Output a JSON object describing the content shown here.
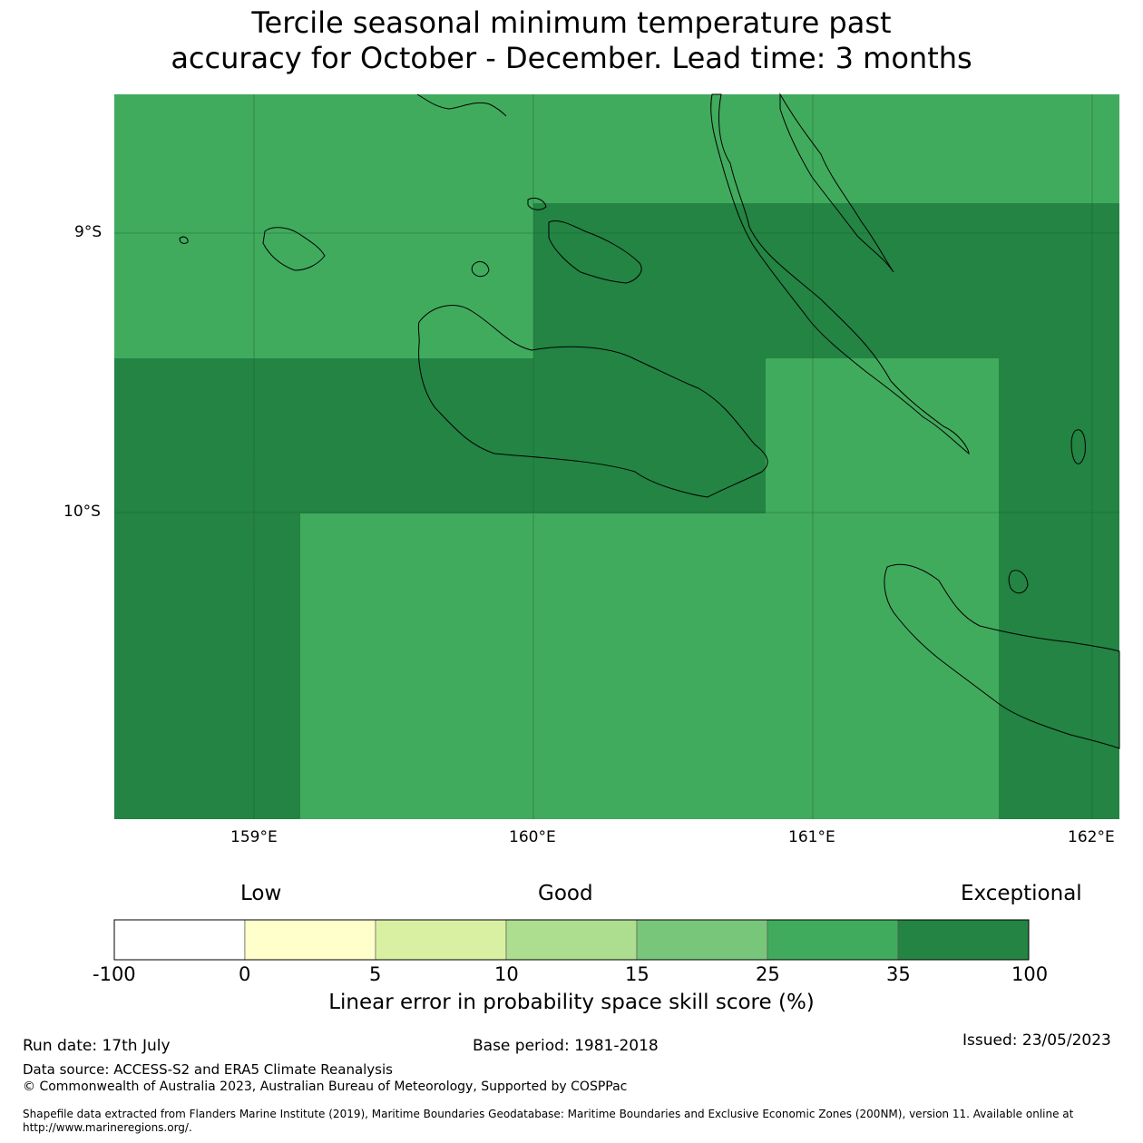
{
  "title": {
    "line1": "Tercile seasonal minimum temperature past",
    "line2": "accuracy for October - December. Lead time: 3 months"
  },
  "map": {
    "lat_labels": [
      "9°S",
      "10°S"
    ],
    "lon_labels": [
      "159°E",
      "160°E",
      "161°E",
      "162°E"
    ],
    "colors": {
      "band_25_35": "#41ab5d",
      "band_35_100": "#238443"
    }
  },
  "colorbar": {
    "heading_low": "Low",
    "heading_good": "Good",
    "heading_exceptional": "Exceptional",
    "ticks": [
      "-100",
      "0",
      "5",
      "10",
      "15",
      "25",
      "35",
      "100"
    ],
    "colors": [
      "#ffffff",
      "#ffffcc",
      "#d9f0a3",
      "#addd8e",
      "#78c679",
      "#41ab5d",
      "#238443"
    ],
    "label": "Linear error in probability space skill score (%)"
  },
  "footer": {
    "run_date": "Run date: 17th July",
    "base_period": "Base period: 1981-2018",
    "issued": "Issued: 23/05/2023",
    "data_source": "Data source: ACCESS-S2 and ERA5 Climate Reanalysis",
    "copyright": "© Commonwealth of Australia 2023, Australian Bureau of Meteorology, Supported by COSPPac",
    "shapefile_line1": "Shapefile data extracted from Flanders Marine Institute (2019), Maritime Boundaries Geodatabase: Maritime Boundaries and Exclusive Economic Zones (200NM), version 11. Available online at",
    "shapefile_line2": "http://www.marineregions.org/."
  }
}
